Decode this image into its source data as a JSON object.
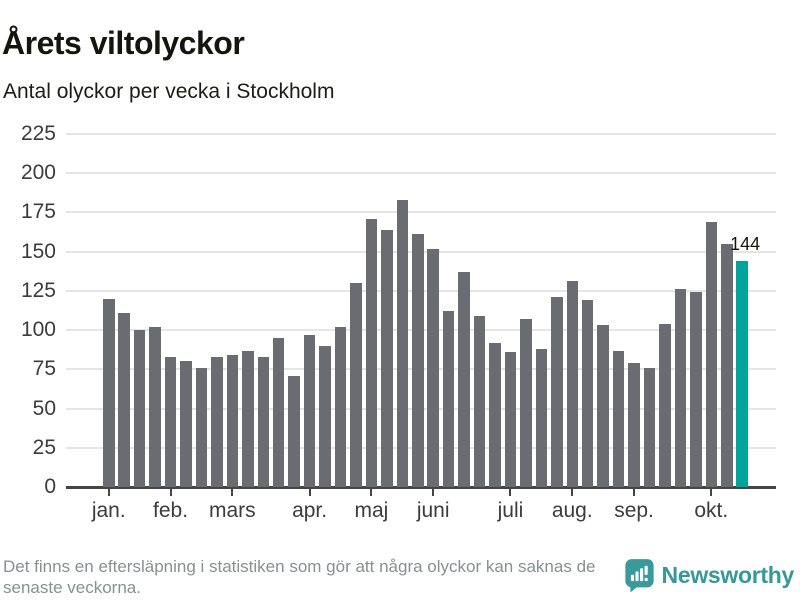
{
  "header": {
    "title": "Årets viltolyckor",
    "subtitle": "Antal olyckor per vecka i Stockholm"
  },
  "chart_data": {
    "type": "bar",
    "title": "Årets viltolyckor",
    "subtitle": "Antal olyckor per vecka i Stockholm",
    "x_unit": "week",
    "xlabel": "",
    "ylabel": "",
    "values": [
      120,
      111,
      100,
      102,
      83,
      80,
      76,
      83,
      84,
      87,
      83,
      95,
      71,
      97,
      90,
      102,
      130,
      171,
      164,
      183,
      161,
      152,
      112,
      137,
      109,
      92,
      86,
      107,
      88,
      121,
      131,
      119,
      103,
      87,
      79,
      76,
      104,
      126,
      124,
      169,
      155,
      144
    ],
    "highlight": {
      "index": 41,
      "label": "144"
    },
    "months": [
      {
        "label": "jan.",
        "week": 0
      },
      {
        "label": "feb.",
        "week": 4
      },
      {
        "label": "mars",
        "week": 8
      },
      {
        "label": "apr.",
        "week": 13
      },
      {
        "label": "maj",
        "week": 17
      },
      {
        "label": "juni",
        "week": 21
      },
      {
        "label": "juli",
        "week": 26
      },
      {
        "label": "aug.",
        "week": 30
      },
      {
        "label": "sep.",
        "week": 34
      },
      {
        "label": "okt.",
        "week": 39
      }
    ],
    "ylim": [
      0,
      225
    ],
    "yticks": [
      0,
      25,
      50,
      75,
      100,
      125,
      150,
      175,
      200,
      225
    ],
    "grid": true,
    "legend": false,
    "colors": {
      "bar": "#6b6b72",
      "highlight": "#00a49b",
      "grid": "#e5e5e5",
      "axis": "#454545",
      "tick_label": "#3c3c3c",
      "annotation": "#15150f"
    }
  },
  "footer": {
    "note": "Det finns en eftersläpning i statistiken som gör att några olyckor kan saknas de senaste veckorna.",
    "brand": "Newsworthy",
    "brand_color": "#35989b",
    "logo_color": "#3a9a9b"
  }
}
